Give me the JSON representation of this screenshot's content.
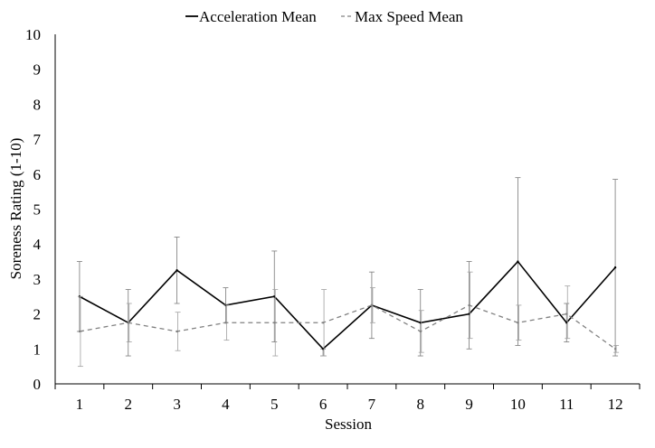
{
  "chart_data": {
    "type": "line",
    "title": "",
    "xlabel": "Session",
    "ylabel": "Soreness Rating (1-10)",
    "ylim": [
      0,
      10
    ],
    "grid": false,
    "legend_position": "top",
    "categories": [
      "1",
      "2",
      "3",
      "4",
      "5",
      "6",
      "7",
      "8",
      "9",
      "10",
      "11",
      "12"
    ],
    "yticks": [
      "0",
      "1",
      "2",
      "3",
      "4",
      "5",
      "6",
      "7",
      "8",
      "9",
      "10"
    ],
    "series": [
      {
        "name": "Acceleration Mean",
        "style": "solid",
        "color": "#000000",
        "values": [
          2.5,
          1.75,
          3.25,
          2.25,
          2.5,
          1.0,
          2.25,
          1.75,
          2.0,
          3.5,
          1.75,
          3.33
        ],
        "error": [
          [
            1.5,
            3.5
          ],
          [
            0.8,
            2.7
          ],
          [
            2.3,
            4.2
          ],
          [
            1.75,
            2.75
          ],
          [
            1.2,
            3.8
          ],
          [
            0.8,
            1.0
          ],
          [
            1.3,
            3.2
          ],
          [
            0.8,
            2.7
          ],
          [
            1.0,
            3.5
          ],
          [
            1.1,
            5.9
          ],
          [
            1.2,
            2.3
          ],
          [
            0.8,
            5.85
          ]
        ]
      },
      {
        "name": "Max Speed Mean",
        "style": "dashed",
        "color": "#808080",
        "values": [
          1.5,
          1.75,
          1.5,
          1.75,
          1.75,
          1.75,
          2.25,
          1.5,
          2.25,
          1.75,
          2.0,
          1.0
        ],
        "error": [
          [
            0.5,
            2.5
          ],
          [
            1.2,
            2.3
          ],
          [
            0.95,
            2.05
          ],
          [
            1.25,
            2.25
          ],
          [
            0.8,
            2.7
          ],
          [
            0.8,
            2.7
          ],
          [
            1.75,
            2.75
          ],
          [
            0.9,
            2.1
          ],
          [
            1.3,
            3.2
          ],
          [
            1.25,
            2.25
          ],
          [
            1.3,
            2.8
          ],
          [
            0.9,
            1.1
          ]
        ]
      }
    ]
  }
}
